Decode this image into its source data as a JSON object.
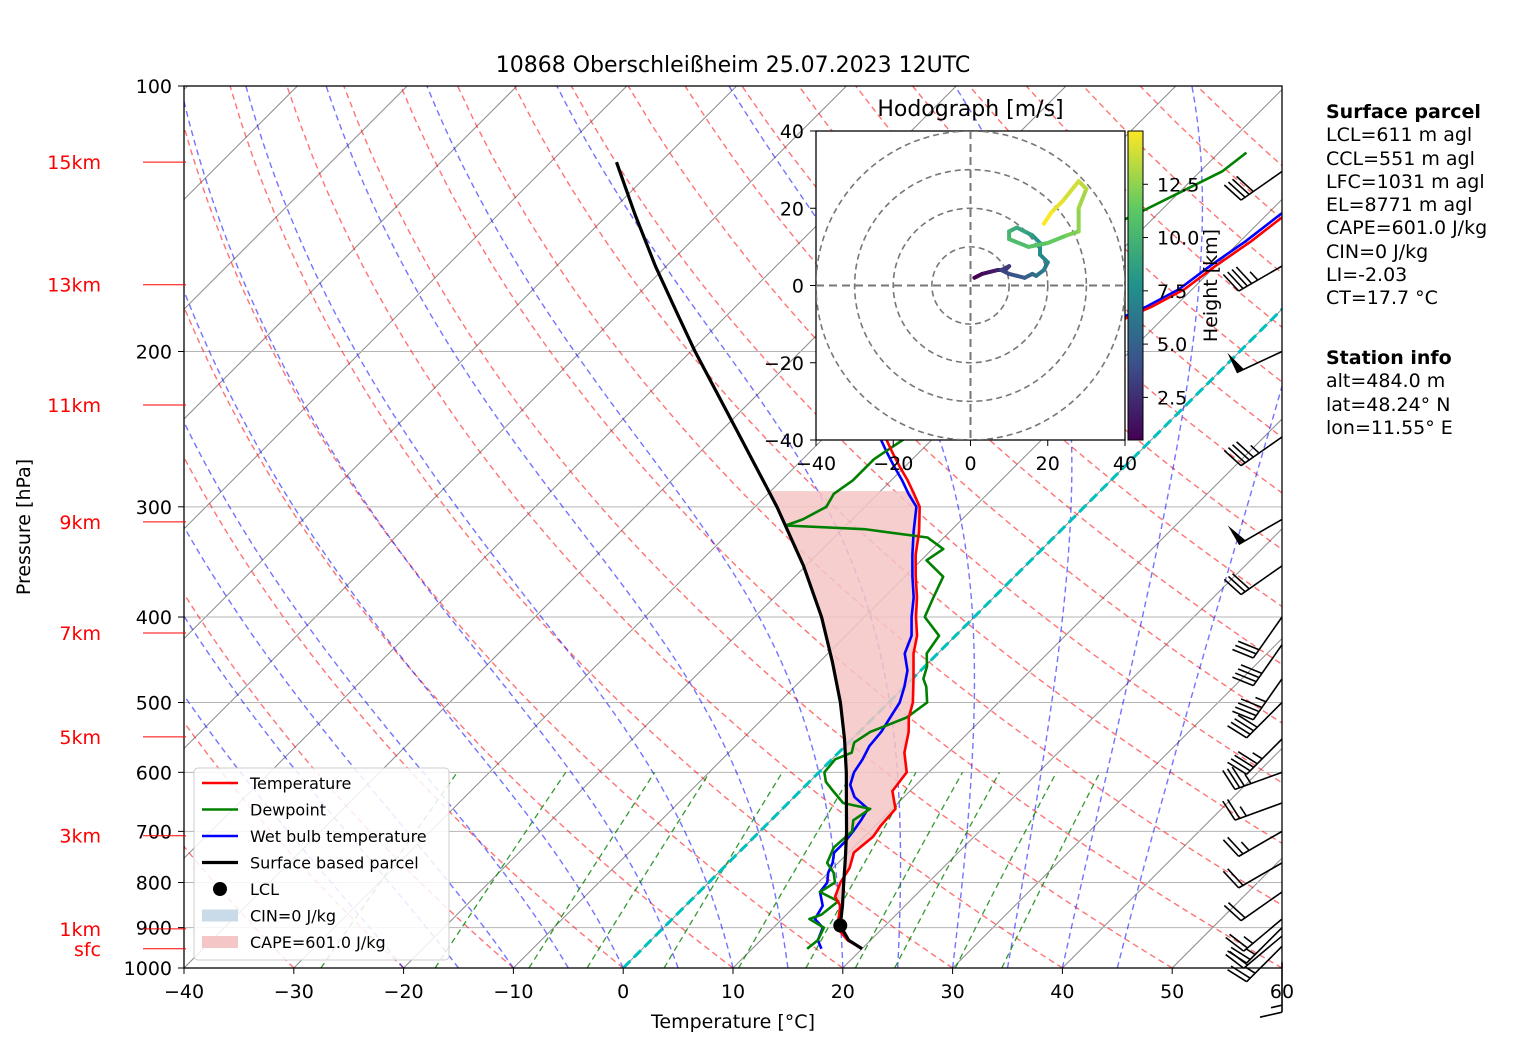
{
  "chart_data": [
    {
      "type": "line",
      "title": "10868 Oberschleißheim 25.07.2023 12UTC",
      "xlabel": "Temperature [°C]",
      "ylabel": "Pressure [hPa]",
      "xlim": [
        -40,
        60
      ],
      "ylim": [
        1000,
        100
      ],
      "y_scale": "log",
      "x_ticks": [
        "−40",
        "−30",
        "−20",
        "−10",
        "0",
        "10",
        "20",
        "30",
        "40",
        "50",
        "60"
      ],
      "y_ticks": [
        {
          "p": 100,
          "label": "100"
        },
        {
          "p": 200,
          "label": "200"
        },
        {
          "p": 300,
          "label": "300"
        },
        {
          "p": 400,
          "label": "400"
        },
        {
          "p": 500,
          "label": "500"
        },
        {
          "p": 600,
          "label": "600"
        },
        {
          "p": 700,
          "label": "700"
        },
        {
          "p": 800,
          "label": "800"
        },
        {
          "p": 900,
          "label": "900"
        },
        {
          "p": 1000,
          "label": "1000"
        }
      ],
      "height_labels": [
        {
          "p": 951,
          "label": "sfc"
        },
        {
          "p": 903,
          "label": "1km"
        },
        {
          "p": 708,
          "label": "3km"
        },
        {
          "p": 547,
          "label": "5km"
        },
        {
          "p": 417,
          "label": "7km"
        },
        {
          "p": 312,
          "label": "9km"
        },
        {
          "p": 230,
          "label": "11km"
        },
        {
          "p": 168,
          "label": "13km"
        },
        {
          "p": 122,
          "label": "15km"
        }
      ],
      "grid": true,
      "legend_position": "lower-left",
      "legend": [
        "Temperature",
        "Dewpoint",
        "Wet bulb temperature",
        "Surface based parcel",
        "LCL",
        "CIN=0 J/kg",
        "CAPE=601.0 J/kg"
      ],
      "colors": {
        "temperature": "#ff0000",
        "dewpoint": "#008000",
        "wetbulb": "#0000ff",
        "parcel": "#000000",
        "dry_adiabat": "#ff0000",
        "moist_adiabat": "#0000ff",
        "mixing_ratio": "#008000",
        "isotherm": "#808080",
        "zero_isotherm": "#00bfbf",
        "cape": "#f4c6c6",
        "cin": "#c9dbe9"
      },
      "series": [
        {
          "name": "Temperature",
          "points": [
            [
              951,
              20
            ],
            [
              930,
              17.9
            ],
            [
              900,
              15.8
            ],
            [
              870,
              14.8
            ],
            [
              850,
              14.1
            ],
            [
              830,
              12.8
            ],
            [
              800,
              12
            ],
            [
              770,
              11.5
            ],
            [
              740,
              10.5
            ],
            [
              710,
              10.8
            ],
            [
              690,
              10.5
            ],
            [
              660,
              10.3
            ],
            [
              630,
              8.4
            ],
            [
              600,
              8
            ],
            [
              570,
              6
            ],
            [
              540,
              4.5
            ],
            [
              520,
              3.2
            ],
            [
              500,
              2.2
            ],
            [
              470,
              0.1
            ],
            [
              440,
              -2.2
            ],
            [
              420,
              -3.5
            ],
            [
              400,
              -5.3
            ],
            [
              380,
              -7
            ],
            [
              360,
              -9
            ],
            [
              340,
              -11
            ],
            [
              320,
              -12.8
            ],
            [
              300,
              -15
            ],
            [
              290,
              -16.7
            ],
            [
              280,
              -18.5
            ],
            [
              270,
              -20.5
            ],
            [
              260,
              -22.5
            ],
            [
              250,
              -24.5
            ],
            [
              240,
              -26
            ],
            [
              232,
              -26.8
            ],
            [
              224,
              -26.7
            ],
            [
              217,
              -25.7
            ],
            [
              212,
              -23.5
            ],
            [
              205,
              -18
            ],
            [
              200,
              -17
            ],
            [
              193,
              -15.5
            ],
            [
              185,
              -13.8
            ],
            [
              178,
              -12.1
            ],
            [
              170,
              -10.7
            ],
            [
              160,
              -10
            ],
            [
              150,
              -9
            ],
            [
              140,
              -8.3
            ],
            [
              130,
              -7
            ],
            [
              123,
              -6.5
            ],
            [
              119,
              -6.3
            ]
          ]
        },
        {
          "name": "Dewpoint",
          "points": [
            [
              951,
              15
            ],
            [
              930,
              15.2
            ],
            [
              900,
              14.6
            ],
            [
              880,
              12.5
            ],
            [
              870,
              13.2
            ],
            [
              840,
              13.5
            ],
            [
              820,
              11
            ],
            [
              800,
              11.5
            ],
            [
              780,
              10.5
            ],
            [
              760,
              9
            ],
            [
              730,
              8.2
            ],
            [
              700,
              8.4
            ],
            [
              680,
              7.5
            ],
            [
              660,
              8
            ],
            [
              650,
              5
            ],
            [
              630,
              3
            ],
            [
              615,
              1.5
            ],
            [
              600,
              0.5
            ],
            [
              580,
              0.3
            ],
            [
              570,
              1.2
            ],
            [
              555,
              0.5
            ],
            [
              540,
              1
            ],
            [
              520,
              3
            ],
            [
              500,
              3.5
            ],
            [
              480,
              2
            ],
            [
              470,
              1
            ],
            [
              455,
              0.2
            ],
            [
              440,
              -1
            ],
            [
              420,
              -1.5
            ],
            [
              400,
              -4.5
            ],
            [
              380,
              -5.5
            ],
            [
              360,
              -6.5
            ],
            [
              345,
              -9.5
            ],
            [
              335,
              -9
            ],
            [
              325,
              -11.5
            ],
            [
              318,
              -18
            ],
            [
              315,
              -25.5
            ],
            [
              310,
              -24.5
            ],
            [
              300,
              -23.5
            ],
            [
              290,
              -24
            ],
            [
              280,
              -23.5
            ],
            [
              265,
              -23.5
            ],
            [
              250,
              -22.5
            ],
            [
              240,
              -23
            ],
            [
              232,
              -24.5
            ],
            [
              225,
              -26
            ],
            [
              218,
              -28
            ],
            [
              212,
              -30
            ],
            [
              208,
              -32
            ],
            [
              203,
              -30.5
            ],
            [
              198,
              -30
            ],
            [
              193,
              -32
            ],
            [
              185,
              -31
            ],
            [
              175,
              -30
            ],
            [
              165,
              -27
            ],
            [
              150,
              -25
            ],
            [
              140,
              -22
            ],
            [
              125,
              -18
            ],
            [
              119,
              -17.5
            ]
          ]
        },
        {
          "name": "Wet bulb temperature",
          "points": [
            [
              951,
              16.3
            ],
            [
              930,
              15.2
            ],
            [
              900,
              14.5
            ],
            [
              880,
              13
            ],
            [
              850,
              12.5
            ],
            [
              820,
              11
            ],
            [
              800,
              10.8
            ],
            [
              780,
              10
            ],
            [
              760,
              9.5
            ],
            [
              740,
              8.7
            ],
            [
              720,
              8.7
            ],
            [
              700,
              8.5
            ],
            [
              680,
              8.2
            ],
            [
              660,
              7.8
            ],
            [
              640,
              5.5
            ],
            [
              620,
              4
            ],
            [
              600,
              3.2
            ],
            [
              580,
              2.8
            ],
            [
              560,
              2.2
            ],
            [
              540,
              2
            ],
            [
              520,
              1.5
            ],
            [
              500,
              1
            ],
            [
              480,
              0
            ],
            [
              460,
              -1.2
            ],
            [
              440,
              -3
            ],
            [
              420,
              -4
            ],
            [
              400,
              -5.7
            ],
            [
              380,
              -7.3
            ],
            [
              360,
              -9.3
            ],
            [
              340,
              -11.3
            ],
            [
              320,
              -13.3
            ],
            [
              300,
              -15.3
            ],
            [
              290,
              -17.2
            ],
            [
              280,
              -19
            ],
            [
              270,
              -21
            ],
            [
              260,
              -23
            ],
            [
              250,
              -25
            ],
            [
              240,
              -26.5
            ],
            [
              232,
              -27.3
            ],
            [
              224,
              -27.2
            ],
            [
              217,
              -26.2
            ],
            [
              212,
              -24
            ],
            [
              205,
              -18.5
            ],
            [
              200,
              -17.5
            ],
            [
              193,
              -16
            ],
            [
              185,
              -14.3
            ],
            [
              178,
              -12.6
            ],
            [
              170,
              -11.2
            ],
            [
              160,
              -10.5
            ],
            [
              150,
              -9.5
            ],
            [
              140,
              -8.8
            ],
            [
              130,
              -7.5
            ],
            [
              123,
              -7
            ],
            [
              119,
              -6.8
            ]
          ]
        },
        {
          "name": "Surface based parcel",
          "points": [
            [
              951,
              20
            ],
            [
              930,
              18
            ],
            [
              895,
              15.9
            ],
            [
              850,
              14.3
            ],
            [
              800,
              12.3
            ],
            [
              750,
              10.2
            ],
            [
              700,
              7.9
            ],
            [
              650,
              5.3
            ],
            [
              600,
              2.5
            ],
            [
              550,
              -0.7
            ],
            [
              500,
              -4.4
            ],
            [
              450,
              -8.8
            ],
            [
              400,
              -13.9
            ],
            [
              350,
              -20.2
            ],
            [
              300,
              -28
            ],
            [
              250,
              -37.7
            ],
            [
              200,
              -49.6
            ],
            [
              180,
              -55
            ],
            [
              160,
              -61
            ],
            [
              140,
              -67.5
            ],
            [
              122,
              -74
            ]
          ]
        }
      ],
      "lcl": {
        "p": 895,
        "t": 15.9
      }
    },
    {
      "type": "line",
      "title": "Hodograph [m/s]",
      "xlim": [
        -40,
        40
      ],
      "ylim": [
        -40,
        40
      ],
      "x_ticks": [
        "−40",
        "−20",
        "0",
        "20",
        "40"
      ],
      "y_ticks": [
        "−40",
        "−20",
        "0",
        "20",
        "40"
      ],
      "rings": [
        10,
        20,
        30,
        40
      ],
      "colorbar": {
        "label": "Height [km]",
        "ticks": [
          "2.5",
          "5.0",
          "7.5",
          "10.0",
          "12.5"
        ],
        "range": [
          0.5,
          15
        ]
      },
      "points": [
        [
          0.5,
          1,
          2
        ],
        [
          1,
          3,
          3
        ],
        [
          1.5,
          5,
          3.5
        ],
        [
          2,
          7,
          4
        ],
        [
          2.5,
          9,
          4
        ],
        [
          3,
          10,
          5
        ],
        [
          3.5,
          8,
          4
        ],
        [
          4,
          10,
          3
        ],
        [
          4.5,
          12,
          2.5
        ],
        [
          5,
          14,
          2
        ],
        [
          5.5,
          16,
          3
        ],
        [
          6,
          17,
          2.5
        ],
        [
          6.5,
          19,
          4
        ],
        [
          7,
          20,
          6
        ],
        [
          7.5,
          18,
          8
        ],
        [
          8,
          18,
          11
        ],
        [
          8.5,
          16,
          13
        ],
        [
          9,
          14,
          14
        ],
        [
          9.5,
          12,
          15
        ],
        [
          10,
          10,
          14
        ],
        [
          10.5,
          10,
          12
        ],
        [
          11,
          15,
          10
        ],
        [
          11.5,
          20,
          11
        ],
        [
          12,
          25,
          13
        ],
        [
          12.5,
          28,
          14
        ],
        [
          13,
          28,
          20
        ],
        [
          13.5,
          30,
          25
        ],
        [
          14,
          28,
          27
        ],
        [
          14.5,
          24,
          22
        ],
        [
          15,
          21,
          19
        ],
        [
          15,
          19,
          16
        ]
      ]
    }
  ],
  "surface_parcel": {
    "title": "Surface parcel",
    "lines": [
      "LCL=611 m agl",
      "CCL=551 m agl",
      "LFC=1031 m agl",
      "EL=8771 m agl",
      "CAPE=601.0 J/kg",
      "CIN=0 J/kg",
      "LI=-2.03",
      "CT=17.7 °C"
    ]
  },
  "station_info": {
    "title": "Station info",
    "lines": [
      "alt=484.0 m",
      "lat=48.24° N",
      "lon=11.55° E"
    ]
  },
  "winds": [
    {
      "p": 985,
      "ws": 8,
      "wd": 180
    },
    {
      "p": 945,
      "ws": 12,
      "wd": 225
    },
    {
      "p": 920,
      "ws": 11,
      "wd": 230
    },
    {
      "p": 900,
      "ws": 14,
      "wd": 225
    },
    {
      "p": 880,
      "ws": 13,
      "wd": 230
    },
    {
      "p": 820,
      "ws": 11,
      "wd": 235
    },
    {
      "p": 760,
      "ws": 11,
      "wd": 240
    },
    {
      "p": 700,
      "ws": 12,
      "wd": 240
    },
    {
      "p": 650,
      "ws": 12,
      "wd": 250
    },
    {
      "p": 600,
      "ws": 17,
      "wd": 250
    },
    {
      "p": 550,
      "ws": 22,
      "wd": 225
    },
    {
      "p": 500,
      "ws": 21,
      "wd": 225
    },
    {
      "p": 470,
      "ws": 22,
      "wd": 215
    },
    {
      "p": 430,
      "ws": 20,
      "wd": 215
    },
    {
      "p": 400,
      "ws": 16,
      "wd": 215
    },
    {
      "p": 350,
      "ws": 16,
      "wd": 235
    },
    {
      "p": 310,
      "ws": 25,
      "wd": 240
    },
    {
      "p": 250,
      "ws": 22,
      "wd": 235
    },
    {
      "p": 200,
      "ws": 25,
      "wd": 245
    },
    {
      "p": 160,
      "ws": 22,
      "wd": 240
    },
    {
      "p": 125,
      "ws": 21,
      "wd": 235
    }
  ]
}
